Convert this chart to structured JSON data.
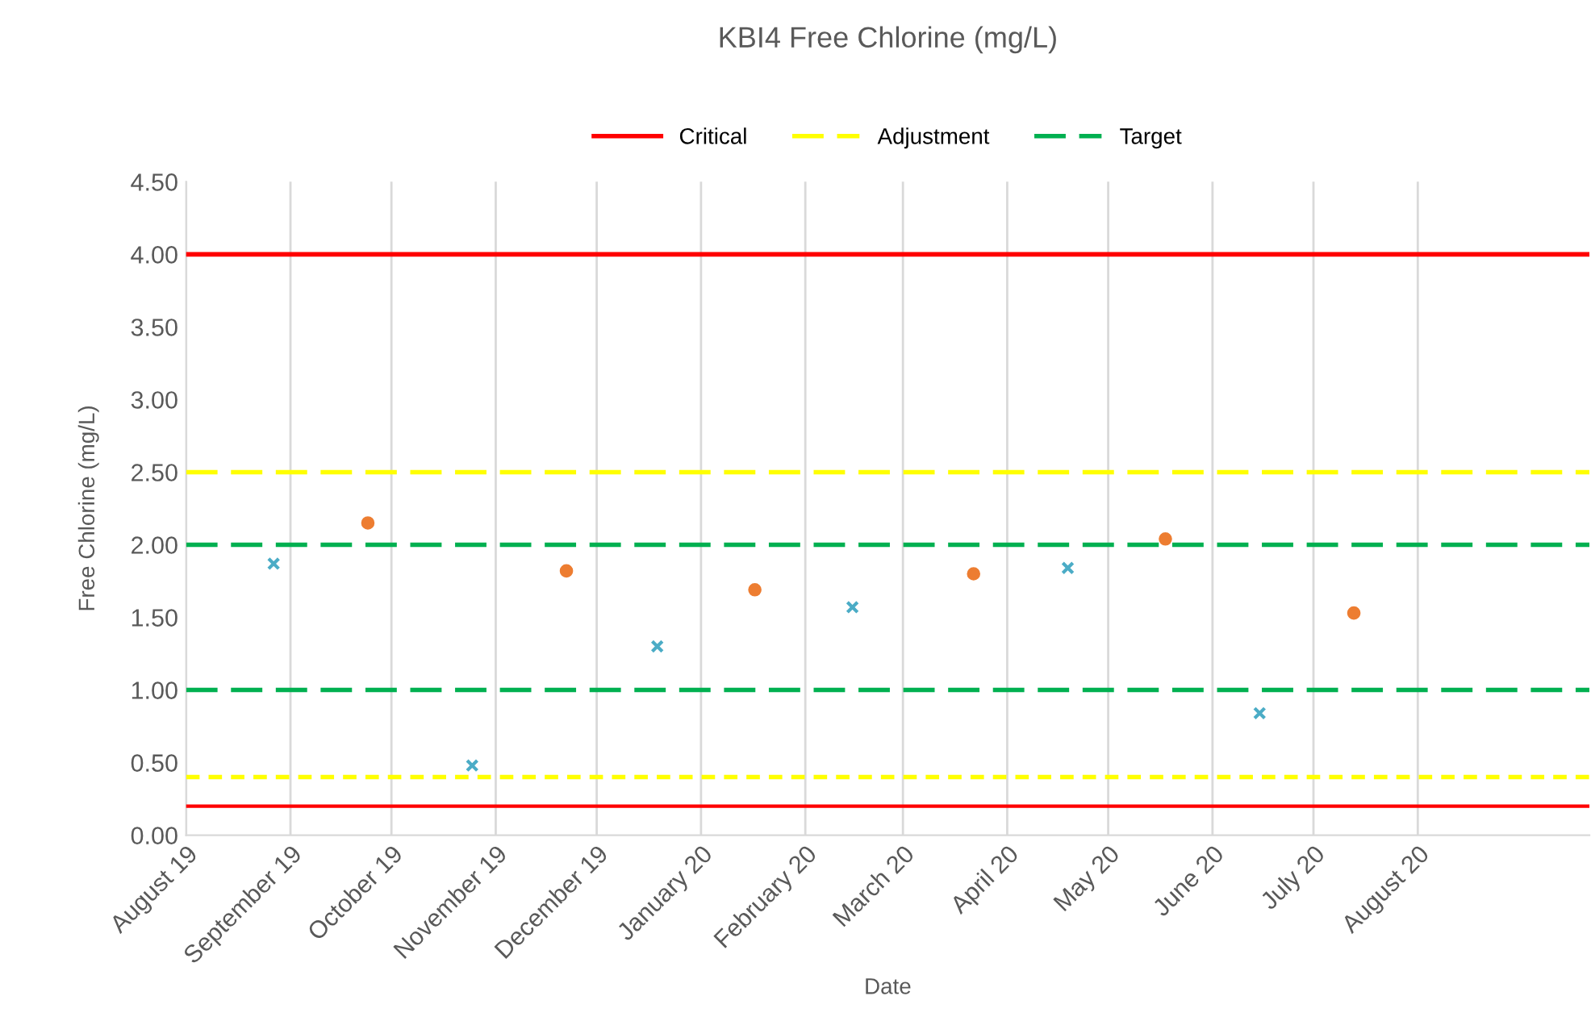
{
  "chart_data": {
    "type": "scatter",
    "title": "KBI4 Free Chlorine (mg/L)",
    "xlabel": "Date",
    "ylabel": "Free Chlorine (mg/L)",
    "series": [
      {
        "color": "#4bacc6",
        "marker": "cross",
        "x": [
          "2019-08-27",
          "2019-10-25",
          "2019-12-19",
          "2020-02-15",
          "2020-04-19",
          "2020-06-15"
        ],
        "values": [
          1.87,
          0.48,
          1.3,
          1.57,
          1.84,
          0.84
        ]
      },
      {
        "color": "#ed7d31",
        "marker": "circle",
        "x": [
          "2019-09-24",
          "2019-11-22",
          "2020-01-17",
          "2020-03-22",
          "2020-05-18",
          "2020-07-13"
        ],
        "values": [
          2.15,
          1.82,
          1.69,
          1.8,
          2.04,
          1.53
        ]
      }
    ],
    "ref_lines": [
      {
        "axis": "y",
        "value": 4.0,
        "label": "Critical",
        "color": "#ff0000",
        "line_style": "solid"
      },
      {
        "axis": "y",
        "value": 0.2,
        "label": null,
        "color": "#ff0000",
        "line_style": "solid"
      },
      {
        "axis": "y",
        "value": 2.5,
        "label": "Adjustment",
        "color": "#ffff00",
        "line_style": "dashed"
      },
      {
        "axis": "y",
        "value": 0.4,
        "label": null,
        "color": "#ffff00",
        "line_style": "dotted"
      },
      {
        "axis": "y",
        "value": 2.0,
        "label": "Target",
        "color": "#00b050",
        "line_style": "dashed"
      },
      {
        "axis": "y",
        "value": 1.0,
        "label": null,
        "color": "#00b050",
        "line_style": "dashed"
      }
    ],
    "xlim": [
      "2019-08-01",
      "2020-09-21"
    ],
    "xticks": [
      {
        "value": "2019-08-01",
        "label": "August 19"
      },
      {
        "value": "2019-09-01",
        "label": "September 19"
      },
      {
        "value": "2019-10-01",
        "label": "October 19"
      },
      {
        "value": "2019-11-01",
        "label": "November 19"
      },
      {
        "value": "2019-12-01",
        "label": "December 19"
      },
      {
        "value": "2020-01-01",
        "label": "January 20"
      },
      {
        "value": "2020-02-01",
        "label": "February 20"
      },
      {
        "value": "2020-03-01",
        "label": "March 20"
      },
      {
        "value": "2020-04-01",
        "label": "April 20"
      },
      {
        "value": "2020-05-01",
        "label": "May 20"
      },
      {
        "value": "2020-06-01",
        "label": "June 20"
      },
      {
        "value": "2020-07-01",
        "label": "July 20"
      },
      {
        "value": "2020-08-01",
        "label": "August 20"
      }
    ],
    "ylim": [
      0,
      4.5
    ],
    "yticks": [
      {
        "value": 0,
        "label": "0.00"
      },
      {
        "value": 0.5,
        "label": "0.50"
      },
      {
        "value": 1.0,
        "label": "1.00"
      },
      {
        "value": 1.5,
        "label": "1.50"
      },
      {
        "value": 2.0,
        "label": "2.00"
      },
      {
        "value": 2.5,
        "label": "2.50"
      },
      {
        "value": 3.0,
        "label": "3.00"
      },
      {
        "value": 3.5,
        "label": "3.50"
      },
      {
        "value": 4.0,
        "label": "4.00"
      },
      {
        "value": 4.5,
        "label": "4.50"
      }
    ],
    "grid": "x",
    "legend": "top"
  }
}
